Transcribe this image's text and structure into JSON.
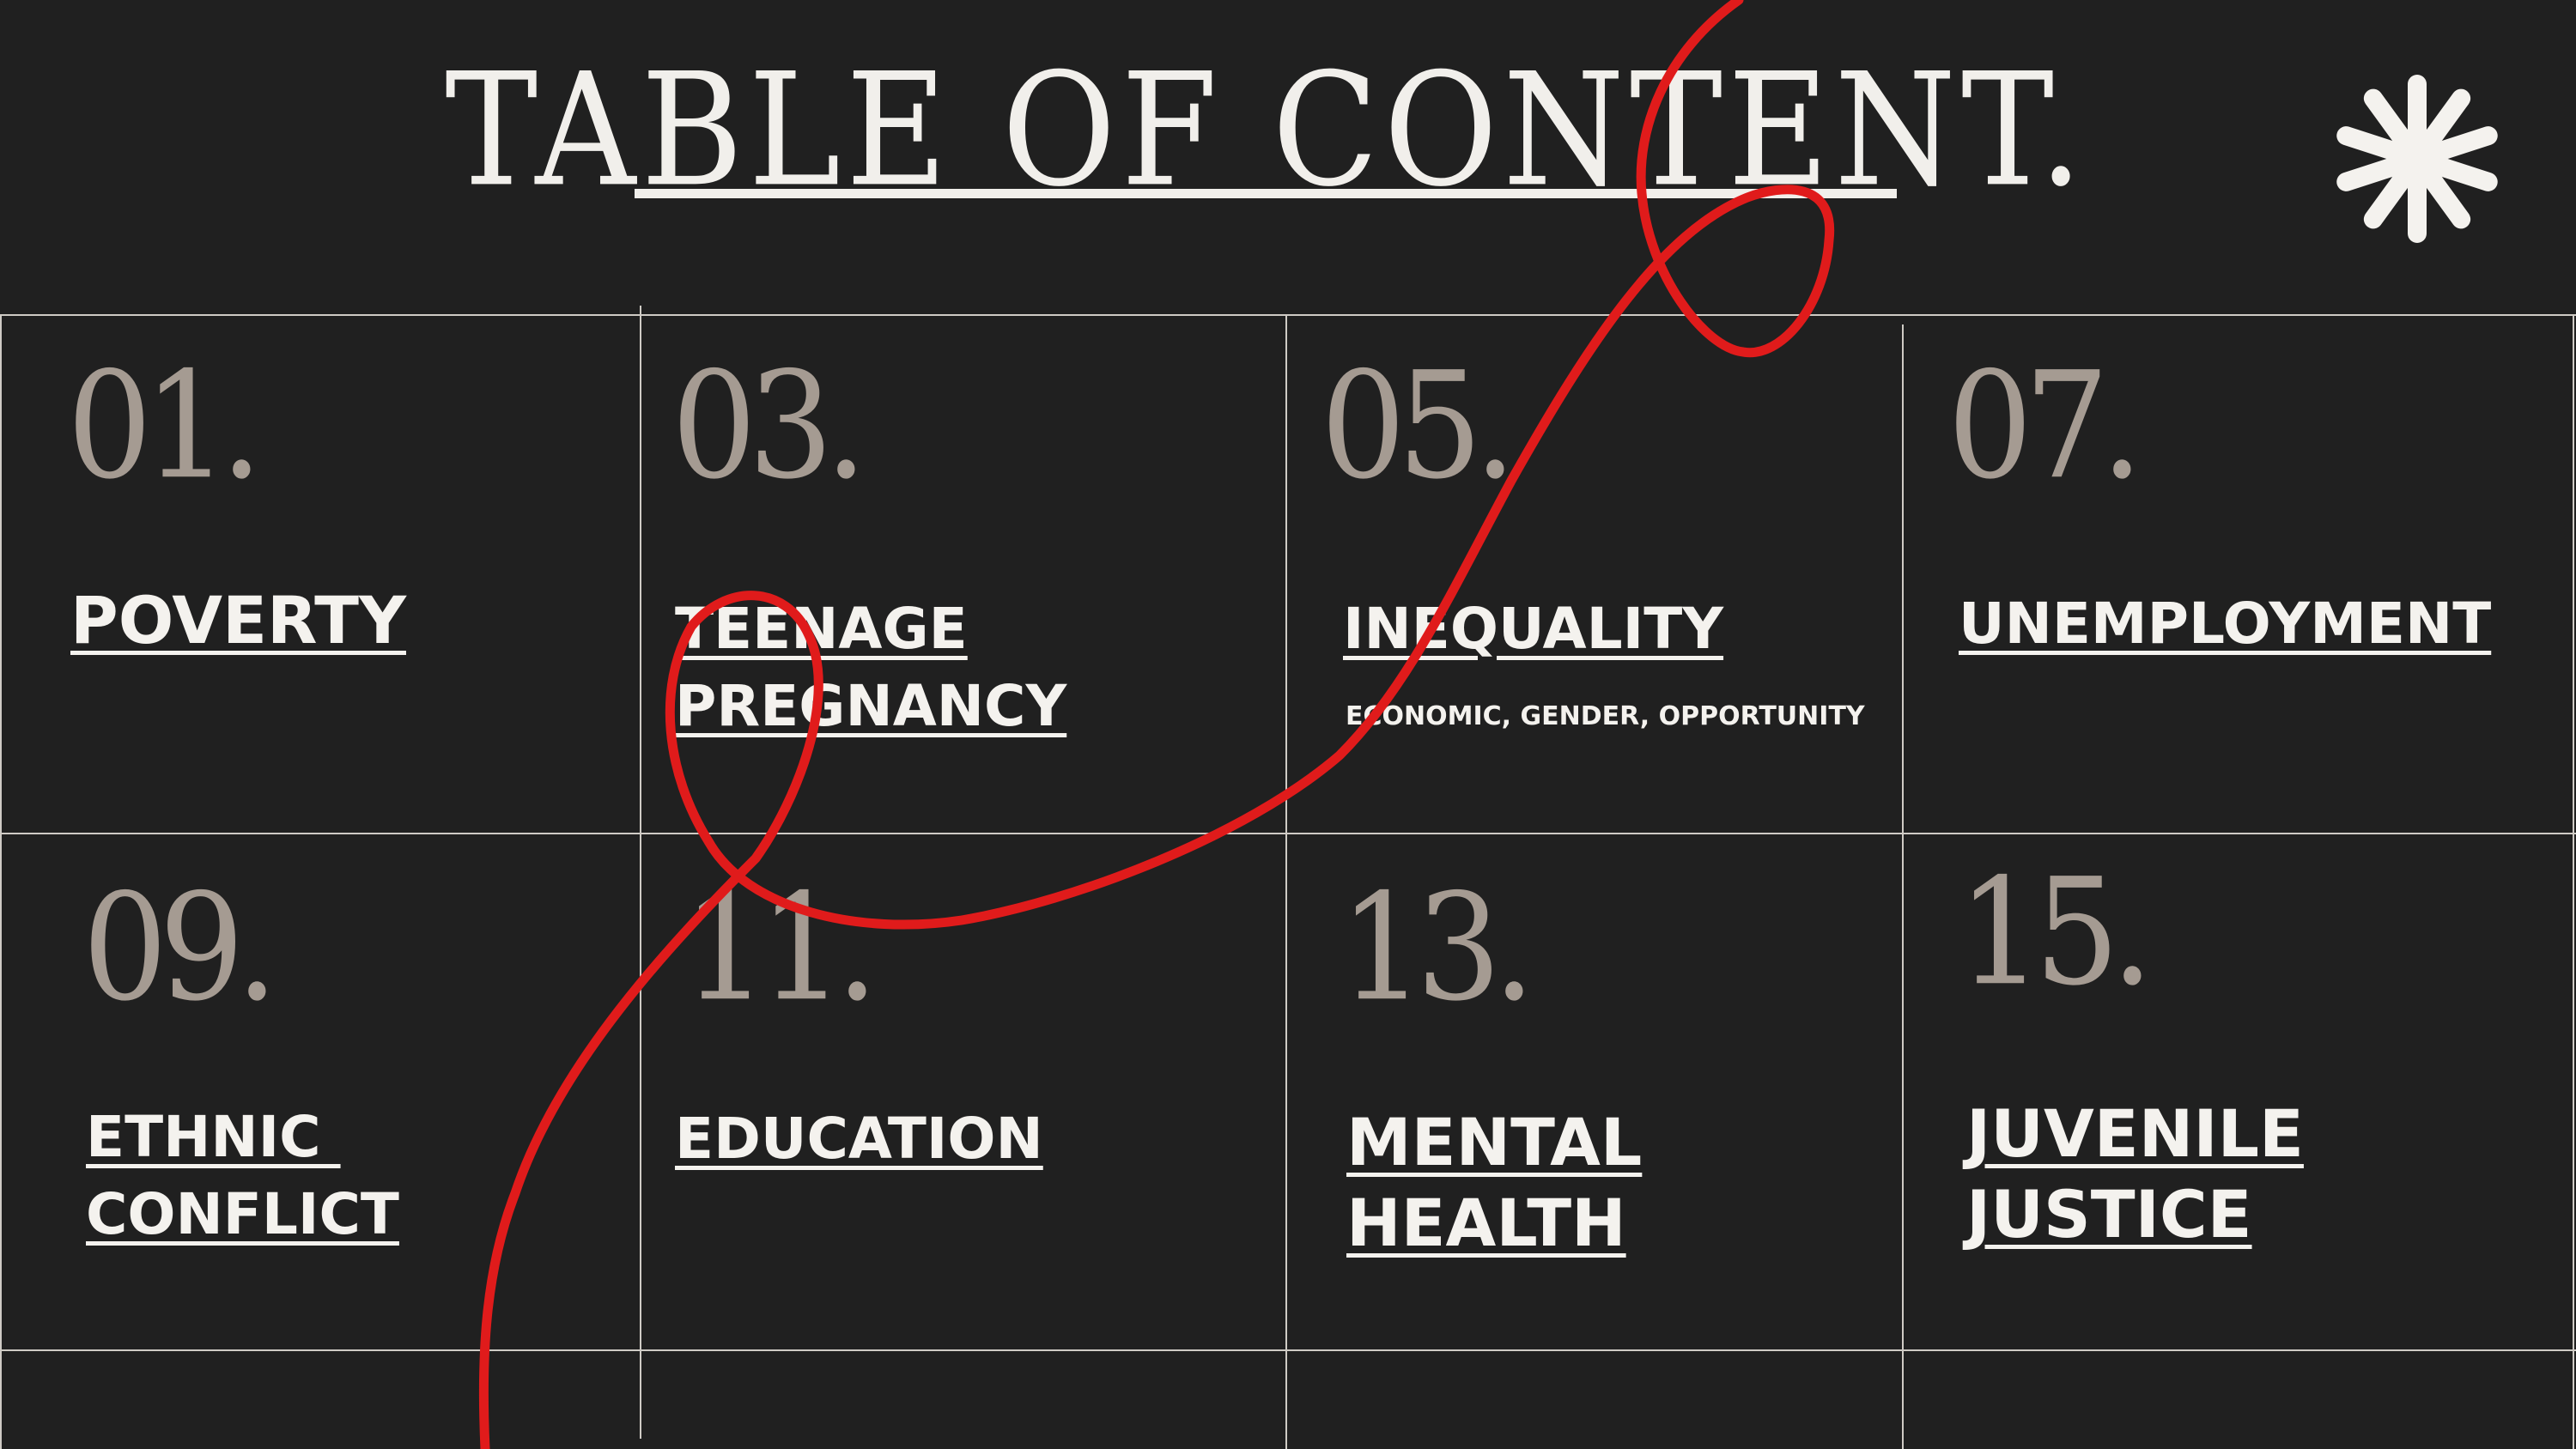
{
  "title": "TABLE OF CONTENT.",
  "colors": {
    "background": "#202020",
    "text": "#f1efeb",
    "number": "#a59b92",
    "ribbon": "#e01b1b",
    "grid": "#cfcbc5"
  },
  "decoration": {
    "corner_icon": "asterisk-flower-icon",
    "ribbon": "red-ribbon-line"
  },
  "items": [
    {
      "number": "01.",
      "topic_lines": [
        "POVERTY"
      ],
      "subtitle": ""
    },
    {
      "number": "03.",
      "topic_lines": [
        "TEENAGE",
        "PREGNANCY"
      ],
      "subtitle": ""
    },
    {
      "number": "05.",
      "topic_lines": [
        "INEQUALITY"
      ],
      "subtitle": "ECONOMIC, GENDER, OPPORTUNITY"
    },
    {
      "number": "07.",
      "topic_lines": [
        "UNEMPLOYMENT"
      ],
      "subtitle": ""
    },
    {
      "number": "09.",
      "topic_lines": [
        "ETHNIC ",
        "CONFLICT"
      ],
      "subtitle": ""
    },
    {
      "number": "11.",
      "topic_lines": [
        "EDUCATION"
      ],
      "subtitle": ""
    },
    {
      "number": "13.",
      "topic_lines": [
        "MENTAL",
        "HEALTH"
      ],
      "subtitle": ""
    },
    {
      "number": "15.",
      "topic_lines": [
        "JUVENILE",
        "JUSTICE"
      ],
      "subtitle": ""
    }
  ]
}
